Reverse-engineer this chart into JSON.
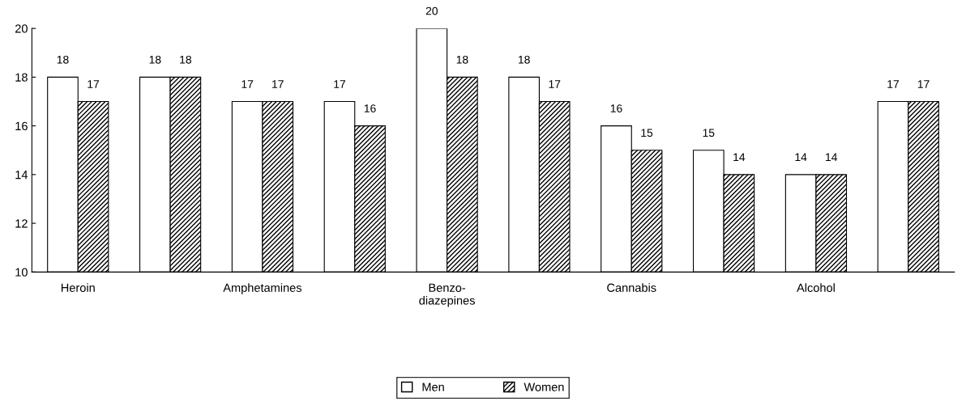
{
  "chart_data": {
    "type": "bar",
    "categories": [
      "Heroin",
      null,
      "Amphetamines",
      null,
      "Benzo-\ndiazepines",
      null,
      "Cannabis",
      null,
      "Alcohol",
      null
    ],
    "series": [
      {
        "name": "Men",
        "color": "#ffffff",
        "values": [
          18,
          18,
          17,
          17,
          20,
          18,
          16,
          15,
          14,
          17
        ]
      },
      {
        "name": "Women",
        "color": "#000000",
        "values": [
          17,
          18,
          17,
          16,
          18,
          17,
          15,
          14,
          14,
          17
        ]
      }
    ],
    "ylim": [
      10,
      20
    ],
    "yticks": [
      10,
      12,
      14,
      16,
      18,
      20
    ],
    "data_labels": true,
    "grid": false,
    "legend": "bottom"
  }
}
